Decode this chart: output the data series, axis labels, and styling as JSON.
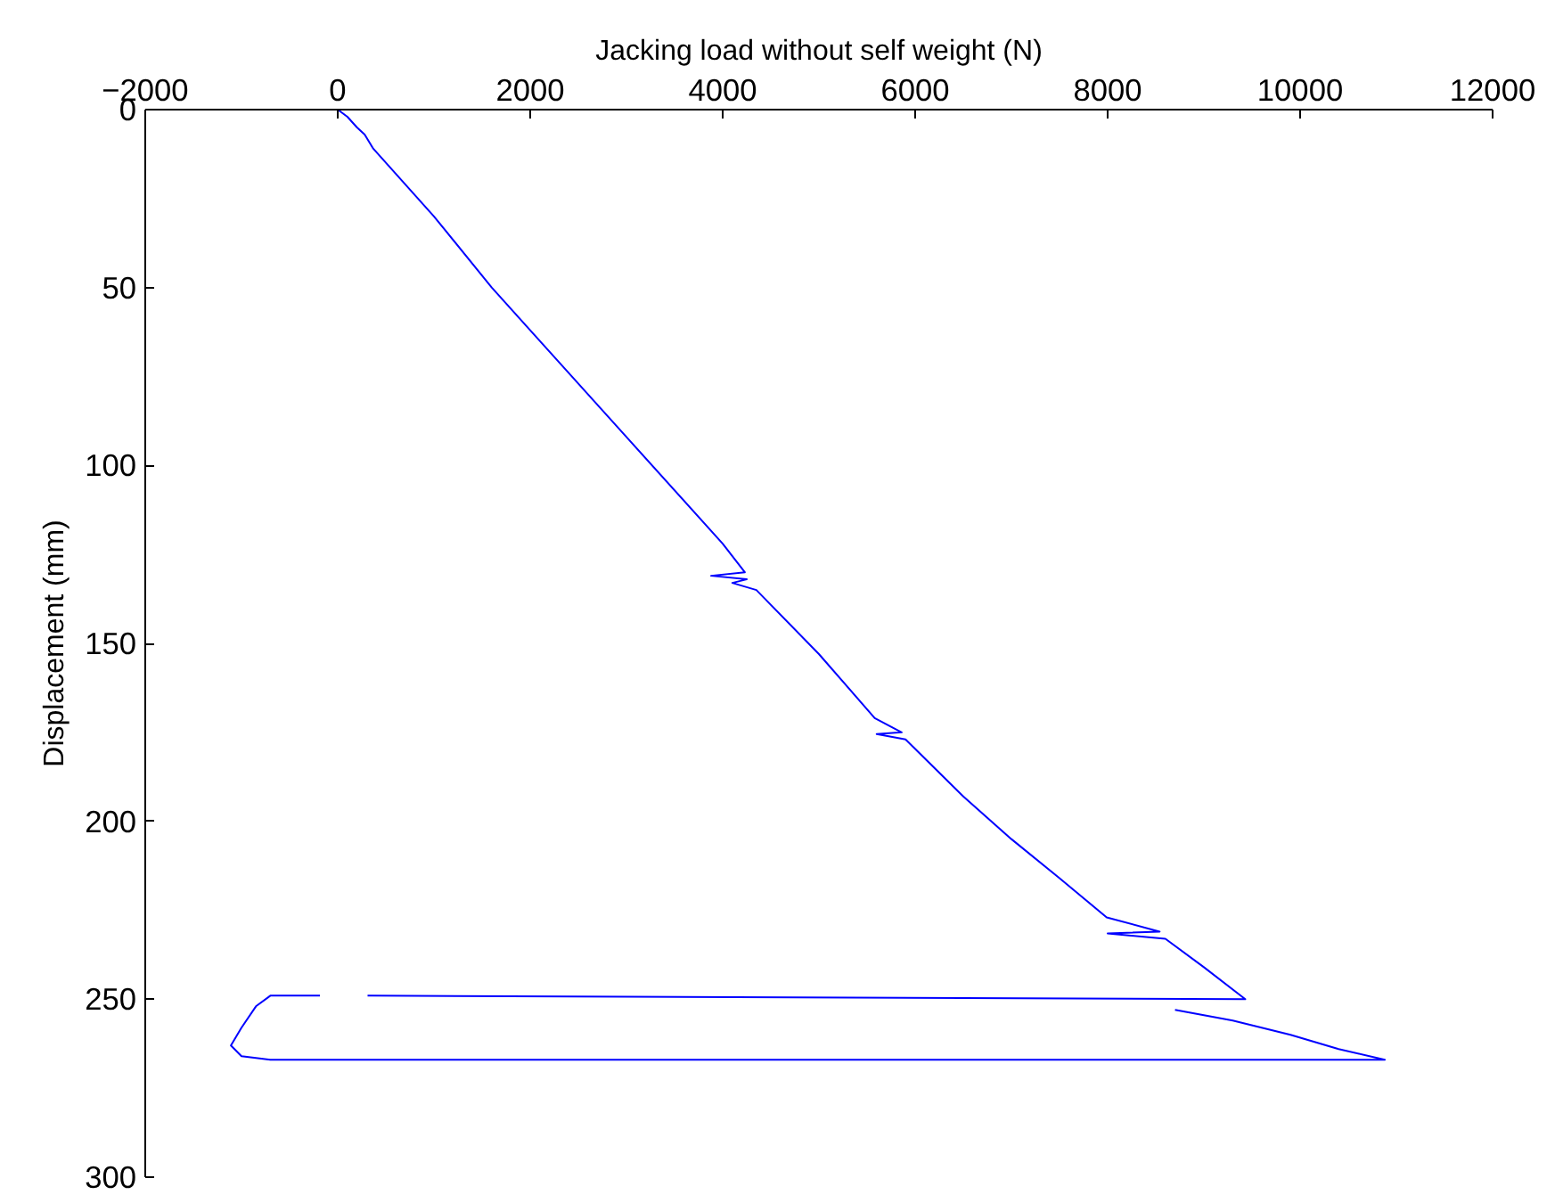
{
  "chart_data": {
    "type": "line",
    "xlabel": "Jacking load without self weight (N)",
    "ylabel": "Displacement (mm)",
    "x": [
      0,
      100,
      200,
      280,
      370,
      1000,
      1600,
      2000,
      3000,
      4000,
      4230,
      3880,
      4250,
      4100,
      4350,
      5000,
      5580,
      5860,
      5600,
      5900,
      6500,
      7000,
      7500,
      7990,
      8540,
      8000,
      8600,
      9000,
      9430,
      310,
      200,
      -185,
      -700,
      -850,
      -1000,
      -1110,
      -1000,
      -700,
      10880,
      10400,
      9900,
      9300,
      8700
    ],
    "series": [
      {
        "color": "#0000ff",
        "values": [
          0,
          2,
          5,
          7,
          11,
          30,
          50,
          62,
          92,
          122,
          130,
          131,
          132,
          133,
          135,
          153,
          171,
          175,
          175.5,
          177,
          193,
          205,
          216,
          227,
          231,
          231.5,
          233,
          241,
          250,
          249,
          null,
          249,
          249,
          252,
          258,
          263,
          266,
          267,
          267,
          264,
          260,
          256,
          253
        ]
      }
    ],
    "xlim": [
      -2000,
      12000
    ],
    "xticks": [
      -2000,
      0,
      2000,
      4000,
      6000,
      8000,
      10000,
      12000
    ],
    "ylim": [
      300,
      0
    ],
    "yticks": [
      0,
      50,
      100,
      150,
      200,
      250,
      300
    ],
    "grid": false,
    "line_style": "solid"
  }
}
